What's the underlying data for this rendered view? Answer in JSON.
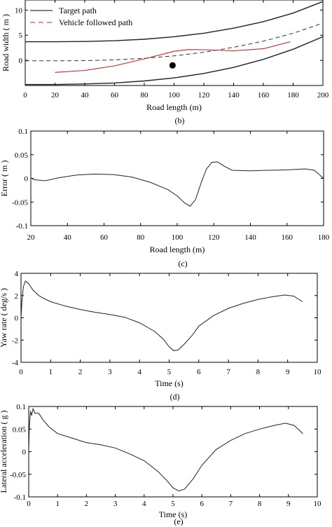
{
  "chart_data": [
    {
      "id": "b",
      "type": "line",
      "panel_label": "(b)",
      "xlabel": "Road length (m)",
      "ylabel": "Road width ( m )",
      "xlim": [
        0,
        200
      ],
      "ylim": [
        -5,
        12
      ],
      "xticks": [
        0,
        20,
        40,
        60,
        80,
        100,
        120,
        140,
        160,
        180,
        200
      ],
      "yticks": [
        0,
        5,
        10
      ],
      "legend": {
        "placement": "top-left",
        "entries": [
          "Target path",
          "Vehicle followed path"
        ]
      },
      "series": [
        {
          "name": "Target path",
          "style": "solid-black",
          "points": [
            [
              0,
              3.7
            ],
            [
              20,
              3.7
            ],
            [
              40,
              3.75
            ],
            [
              60,
              3.9
            ],
            [
              80,
              4.2
            ],
            [
              100,
              4.7
            ],
            [
              120,
              5.4
            ],
            [
              140,
              6.4
            ],
            [
              160,
              7.7
            ],
            [
              180,
              9.4
            ],
            [
              200,
              11.7
            ]
          ]
        },
        {
          "name": "Target path",
          "style": "solid-black",
          "points": [
            [
              0,
              -4.8
            ],
            [
              20,
              -4.8
            ],
            [
              40,
              -4.7
            ],
            [
              60,
              -4.5
            ],
            [
              80,
              -4.1
            ],
            [
              100,
              -3.5
            ],
            [
              120,
              -2.6
            ],
            [
              140,
              -1.4
            ],
            [
              160,
              0.2
            ],
            [
              180,
              2.2
            ],
            [
              200,
              4.7
            ]
          ]
        },
        {
          "name": "Vehicle followed path",
          "style": "dashed-black",
          "points": [
            [
              0,
              -0.1
            ],
            [
              20,
              -0.1
            ],
            [
              40,
              -0.05
            ],
            [
              60,
              0.1
            ],
            [
              80,
              0.4
            ],
            [
              100,
              0.9
            ],
            [
              120,
              1.6
            ],
            [
              140,
              2.6
            ],
            [
              160,
              3.8
            ],
            [
              180,
              5.4
            ],
            [
              200,
              7.4
            ]
          ]
        },
        {
          "name": "",
          "style": "solid-red",
          "points": [
            [
              20,
              -2.4
            ],
            [
              40,
              -2.0
            ],
            [
              60,
              -1.1
            ],
            [
              80,
              0.3
            ],
            [
              100,
              1.8
            ],
            [
              110,
              2.15
            ],
            [
              120,
              2.1
            ],
            [
              140,
              1.9
            ],
            [
              160,
              2.3
            ],
            [
              178,
              3.7
            ]
          ]
        }
      ],
      "markers": [
        {
          "x": 99,
          "y": -1.0,
          "shape": "filled-circle"
        }
      ]
    },
    {
      "id": "c",
      "type": "line",
      "panel_label": "(c)",
      "xlabel": "Road length (m)",
      "ylabel": "Error ( m )",
      "xlim": [
        20,
        180
      ],
      "ylim": [
        -0.1,
        0.1
      ],
      "xticks": [
        20,
        40,
        60,
        80,
        100,
        120,
        140,
        160,
        180
      ],
      "yticks": [
        -0.1,
        -0.05,
        0,
        0.05,
        0.1
      ],
      "ytick_labels": [
        "-0.1",
        "-0.05",
        "0",
        "0.05",
        "0.1"
      ],
      "series": [
        {
          "name": "",
          "points": [
            [
              20,
              0.001
            ],
            [
              22,
              -0.003
            ],
            [
              28,
              -0.005
            ],
            [
              35,
              0.001
            ],
            [
              45,
              0.007
            ],
            [
              55,
              0.009
            ],
            [
              65,
              0.008
            ],
            [
              75,
              0.003
            ],
            [
              85,
              -0.008
            ],
            [
              95,
              -0.024
            ],
            [
              100,
              -0.037
            ],
            [
              104,
              -0.052
            ],
            [
              107,
              -0.059
            ],
            [
              110,
              -0.045
            ],
            [
              113,
              -0.01
            ],
            [
              116,
              0.02
            ],
            [
              119,
              0.034
            ],
            [
              122,
              0.035
            ],
            [
              126,
              0.025
            ],
            [
              130,
              0.017
            ],
            [
              140,
              0.016
            ],
            [
              150,
              0.017
            ],
            [
              160,
              0.018
            ],
            [
              170,
              0.02
            ],
            [
              175,
              0.017
            ],
            [
              180,
              0.0
            ]
          ]
        }
      ]
    },
    {
      "id": "d",
      "type": "line",
      "panel_label": "(d)",
      "xlabel": "Time (s)",
      "ylabel": "Yaw rate ( deg/s )",
      "xlim": [
        0,
        10
      ],
      "ylim": [
        -4,
        4
      ],
      "xticks": [
        0,
        1,
        2,
        3,
        4,
        5,
        6,
        7,
        8,
        9,
        10
      ],
      "yticks": [
        -4,
        -2,
        0,
        2,
        4
      ],
      "series": [
        {
          "name": "",
          "points": [
            [
              0,
              0.0
            ],
            [
              0.03,
              1.4
            ],
            [
              0.08,
              2.8
            ],
            [
              0.15,
              3.3
            ],
            [
              0.25,
              3.1
            ],
            [
              0.4,
              2.5
            ],
            [
              0.6,
              2.0
            ],
            [
              0.8,
              1.7
            ],
            [
              1.0,
              1.45
            ],
            [
              1.5,
              1.05
            ],
            [
              2.0,
              0.75
            ],
            [
              2.5,
              0.5
            ],
            [
              3.0,
              0.3
            ],
            [
              3.5,
              0.05
            ],
            [
              4.0,
              -0.45
            ],
            [
              4.5,
              -1.2
            ],
            [
              4.8,
              -1.9
            ],
            [
              5.0,
              -2.6
            ],
            [
              5.15,
              -2.95
            ],
            [
              5.3,
              -2.9
            ],
            [
              5.5,
              -2.4
            ],
            [
              5.8,
              -1.5
            ],
            [
              6.0,
              -0.75
            ],
            [
              6.5,
              0.2
            ],
            [
              7.0,
              0.85
            ],
            [
              7.5,
              1.3
            ],
            [
              8.0,
              1.65
            ],
            [
              8.5,
              1.9
            ],
            [
              8.9,
              2.05
            ],
            [
              9.2,
              1.95
            ],
            [
              9.5,
              1.45
            ]
          ]
        }
      ]
    },
    {
      "id": "e",
      "type": "line",
      "panel_label": "(e)",
      "xlabel": "Time (s)",
      "ylabel": "Lateral acceleration ( g )",
      "xlim": [
        0,
        10
      ],
      "ylim": [
        -0.1,
        0.1
      ],
      "xticks": [
        0,
        1,
        2,
        3,
        4,
        5,
        6,
        7,
        8,
        9,
        10
      ],
      "yticks": [
        -0.1,
        -0.05,
        0,
        0.05,
        0.1
      ],
      "ytick_labels": [
        "-0.1",
        "-0.05",
        "0",
        "0.05",
        "0.1"
      ],
      "series": [
        {
          "name": "",
          "points": [
            [
              0,
              0.0
            ],
            [
              0.02,
              0.05
            ],
            [
              0.06,
              0.09
            ],
            [
              0.1,
              0.08
            ],
            [
              0.15,
              0.095
            ],
            [
              0.22,
              0.085
            ],
            [
              0.35,
              0.085
            ],
            [
              0.5,
              0.07
            ],
            [
              0.7,
              0.055
            ],
            [
              1.0,
              0.04
            ],
            [
              1.5,
              0.03
            ],
            [
              2.0,
              0.02
            ],
            [
              2.5,
              0.015
            ],
            [
              3.0,
              0.008
            ],
            [
              3.5,
              -0.005
            ],
            [
              4.0,
              -0.02
            ],
            [
              4.5,
              -0.045
            ],
            [
              4.8,
              -0.065
            ],
            [
              5.0,
              -0.08
            ],
            [
              5.2,
              -0.087
            ],
            [
              5.4,
              -0.083
            ],
            [
              5.7,
              -0.06
            ],
            [
              6.0,
              -0.03
            ],
            [
              6.5,
              0.005
            ],
            [
              7.0,
              0.025
            ],
            [
              7.5,
              0.04
            ],
            [
              8.0,
              0.05
            ],
            [
              8.5,
              0.058
            ],
            [
              8.9,
              0.063
            ],
            [
              9.2,
              0.058
            ],
            [
              9.5,
              0.04
            ]
          ]
        }
      ]
    }
  ]
}
